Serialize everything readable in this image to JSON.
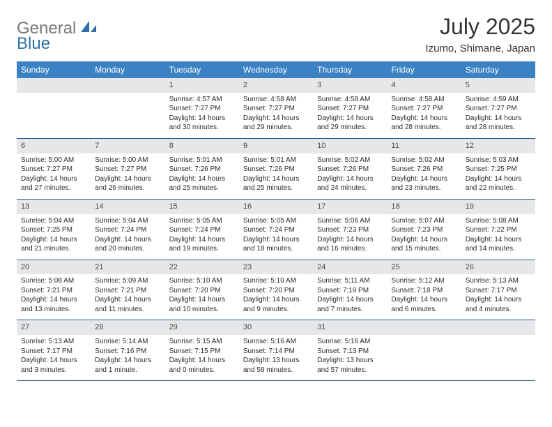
{
  "brand": {
    "word1": "General",
    "word2": "Blue",
    "color_gray": "#76787a",
    "color_blue": "#2f6fa7"
  },
  "title": "July 2025",
  "location": "Izumo, Shimane, Japan",
  "header_bg": "#3b82c4",
  "header_fg": "#ffffff",
  "daynum_bg": "#e6e7e8",
  "row_border": "#2f5d8a",
  "weekdays": [
    "Sunday",
    "Monday",
    "Tuesday",
    "Wednesday",
    "Thursday",
    "Friday",
    "Saturday"
  ],
  "weeks": [
    [
      {
        "day": "",
        "sunrise": "",
        "sunset": "",
        "daylight": ""
      },
      {
        "day": "",
        "sunrise": "",
        "sunset": "",
        "daylight": ""
      },
      {
        "day": "1",
        "sunrise": "Sunrise: 4:57 AM",
        "sunset": "Sunset: 7:27 PM",
        "daylight": "Daylight: 14 hours and 30 minutes."
      },
      {
        "day": "2",
        "sunrise": "Sunrise: 4:58 AM",
        "sunset": "Sunset: 7:27 PM",
        "daylight": "Daylight: 14 hours and 29 minutes."
      },
      {
        "day": "3",
        "sunrise": "Sunrise: 4:58 AM",
        "sunset": "Sunset: 7:27 PM",
        "daylight": "Daylight: 14 hours and 29 minutes."
      },
      {
        "day": "4",
        "sunrise": "Sunrise: 4:58 AM",
        "sunset": "Sunset: 7:27 PM",
        "daylight": "Daylight: 14 hours and 28 minutes."
      },
      {
        "day": "5",
        "sunrise": "Sunrise: 4:59 AM",
        "sunset": "Sunset: 7:27 PM",
        "daylight": "Daylight: 14 hours and 28 minutes."
      }
    ],
    [
      {
        "day": "6",
        "sunrise": "Sunrise: 5:00 AM",
        "sunset": "Sunset: 7:27 PM",
        "daylight": "Daylight: 14 hours and 27 minutes."
      },
      {
        "day": "7",
        "sunrise": "Sunrise: 5:00 AM",
        "sunset": "Sunset: 7:27 PM",
        "daylight": "Daylight: 14 hours and 26 minutes."
      },
      {
        "day": "8",
        "sunrise": "Sunrise: 5:01 AM",
        "sunset": "Sunset: 7:26 PM",
        "daylight": "Daylight: 14 hours and 25 minutes."
      },
      {
        "day": "9",
        "sunrise": "Sunrise: 5:01 AM",
        "sunset": "Sunset: 7:26 PM",
        "daylight": "Daylight: 14 hours and 25 minutes."
      },
      {
        "day": "10",
        "sunrise": "Sunrise: 5:02 AM",
        "sunset": "Sunset: 7:26 PM",
        "daylight": "Daylight: 14 hours and 24 minutes."
      },
      {
        "day": "11",
        "sunrise": "Sunrise: 5:02 AM",
        "sunset": "Sunset: 7:26 PM",
        "daylight": "Daylight: 14 hours and 23 minutes."
      },
      {
        "day": "12",
        "sunrise": "Sunrise: 5:03 AM",
        "sunset": "Sunset: 7:25 PM",
        "daylight": "Daylight: 14 hours and 22 minutes."
      }
    ],
    [
      {
        "day": "13",
        "sunrise": "Sunrise: 5:04 AM",
        "sunset": "Sunset: 7:25 PM",
        "daylight": "Daylight: 14 hours and 21 minutes."
      },
      {
        "day": "14",
        "sunrise": "Sunrise: 5:04 AM",
        "sunset": "Sunset: 7:24 PM",
        "daylight": "Daylight: 14 hours and 20 minutes."
      },
      {
        "day": "15",
        "sunrise": "Sunrise: 5:05 AM",
        "sunset": "Sunset: 7:24 PM",
        "daylight": "Daylight: 14 hours and 19 minutes."
      },
      {
        "day": "16",
        "sunrise": "Sunrise: 5:05 AM",
        "sunset": "Sunset: 7:24 PM",
        "daylight": "Daylight: 14 hours and 18 minutes."
      },
      {
        "day": "17",
        "sunrise": "Sunrise: 5:06 AM",
        "sunset": "Sunset: 7:23 PM",
        "daylight": "Daylight: 14 hours and 16 minutes."
      },
      {
        "day": "18",
        "sunrise": "Sunrise: 5:07 AM",
        "sunset": "Sunset: 7:23 PM",
        "daylight": "Daylight: 14 hours and 15 minutes."
      },
      {
        "day": "19",
        "sunrise": "Sunrise: 5:08 AM",
        "sunset": "Sunset: 7:22 PM",
        "daylight": "Daylight: 14 hours and 14 minutes."
      }
    ],
    [
      {
        "day": "20",
        "sunrise": "Sunrise: 5:08 AM",
        "sunset": "Sunset: 7:21 PM",
        "daylight": "Daylight: 14 hours and 13 minutes."
      },
      {
        "day": "21",
        "sunrise": "Sunrise: 5:09 AM",
        "sunset": "Sunset: 7:21 PM",
        "daylight": "Daylight: 14 hours and 11 minutes."
      },
      {
        "day": "22",
        "sunrise": "Sunrise: 5:10 AM",
        "sunset": "Sunset: 7:20 PM",
        "daylight": "Daylight: 14 hours and 10 minutes."
      },
      {
        "day": "23",
        "sunrise": "Sunrise: 5:10 AM",
        "sunset": "Sunset: 7:20 PM",
        "daylight": "Daylight: 14 hours and 9 minutes."
      },
      {
        "day": "24",
        "sunrise": "Sunrise: 5:11 AM",
        "sunset": "Sunset: 7:19 PM",
        "daylight": "Daylight: 14 hours and 7 minutes."
      },
      {
        "day": "25",
        "sunrise": "Sunrise: 5:12 AM",
        "sunset": "Sunset: 7:18 PM",
        "daylight": "Daylight: 14 hours and 6 minutes."
      },
      {
        "day": "26",
        "sunrise": "Sunrise: 5:13 AM",
        "sunset": "Sunset: 7:17 PM",
        "daylight": "Daylight: 14 hours and 4 minutes."
      }
    ],
    [
      {
        "day": "27",
        "sunrise": "Sunrise: 5:13 AM",
        "sunset": "Sunset: 7:17 PM",
        "daylight": "Daylight: 14 hours and 3 minutes."
      },
      {
        "day": "28",
        "sunrise": "Sunrise: 5:14 AM",
        "sunset": "Sunset: 7:16 PM",
        "daylight": "Daylight: 14 hours and 1 minute."
      },
      {
        "day": "29",
        "sunrise": "Sunrise: 5:15 AM",
        "sunset": "Sunset: 7:15 PM",
        "daylight": "Daylight: 14 hours and 0 minutes."
      },
      {
        "day": "30",
        "sunrise": "Sunrise: 5:16 AM",
        "sunset": "Sunset: 7:14 PM",
        "daylight": "Daylight: 13 hours and 58 minutes."
      },
      {
        "day": "31",
        "sunrise": "Sunrise: 5:16 AM",
        "sunset": "Sunset: 7:13 PM",
        "daylight": "Daylight: 13 hours and 57 minutes."
      },
      {
        "day": "",
        "sunrise": "",
        "sunset": "",
        "daylight": ""
      },
      {
        "day": "",
        "sunrise": "",
        "sunset": "",
        "daylight": ""
      }
    ]
  ]
}
